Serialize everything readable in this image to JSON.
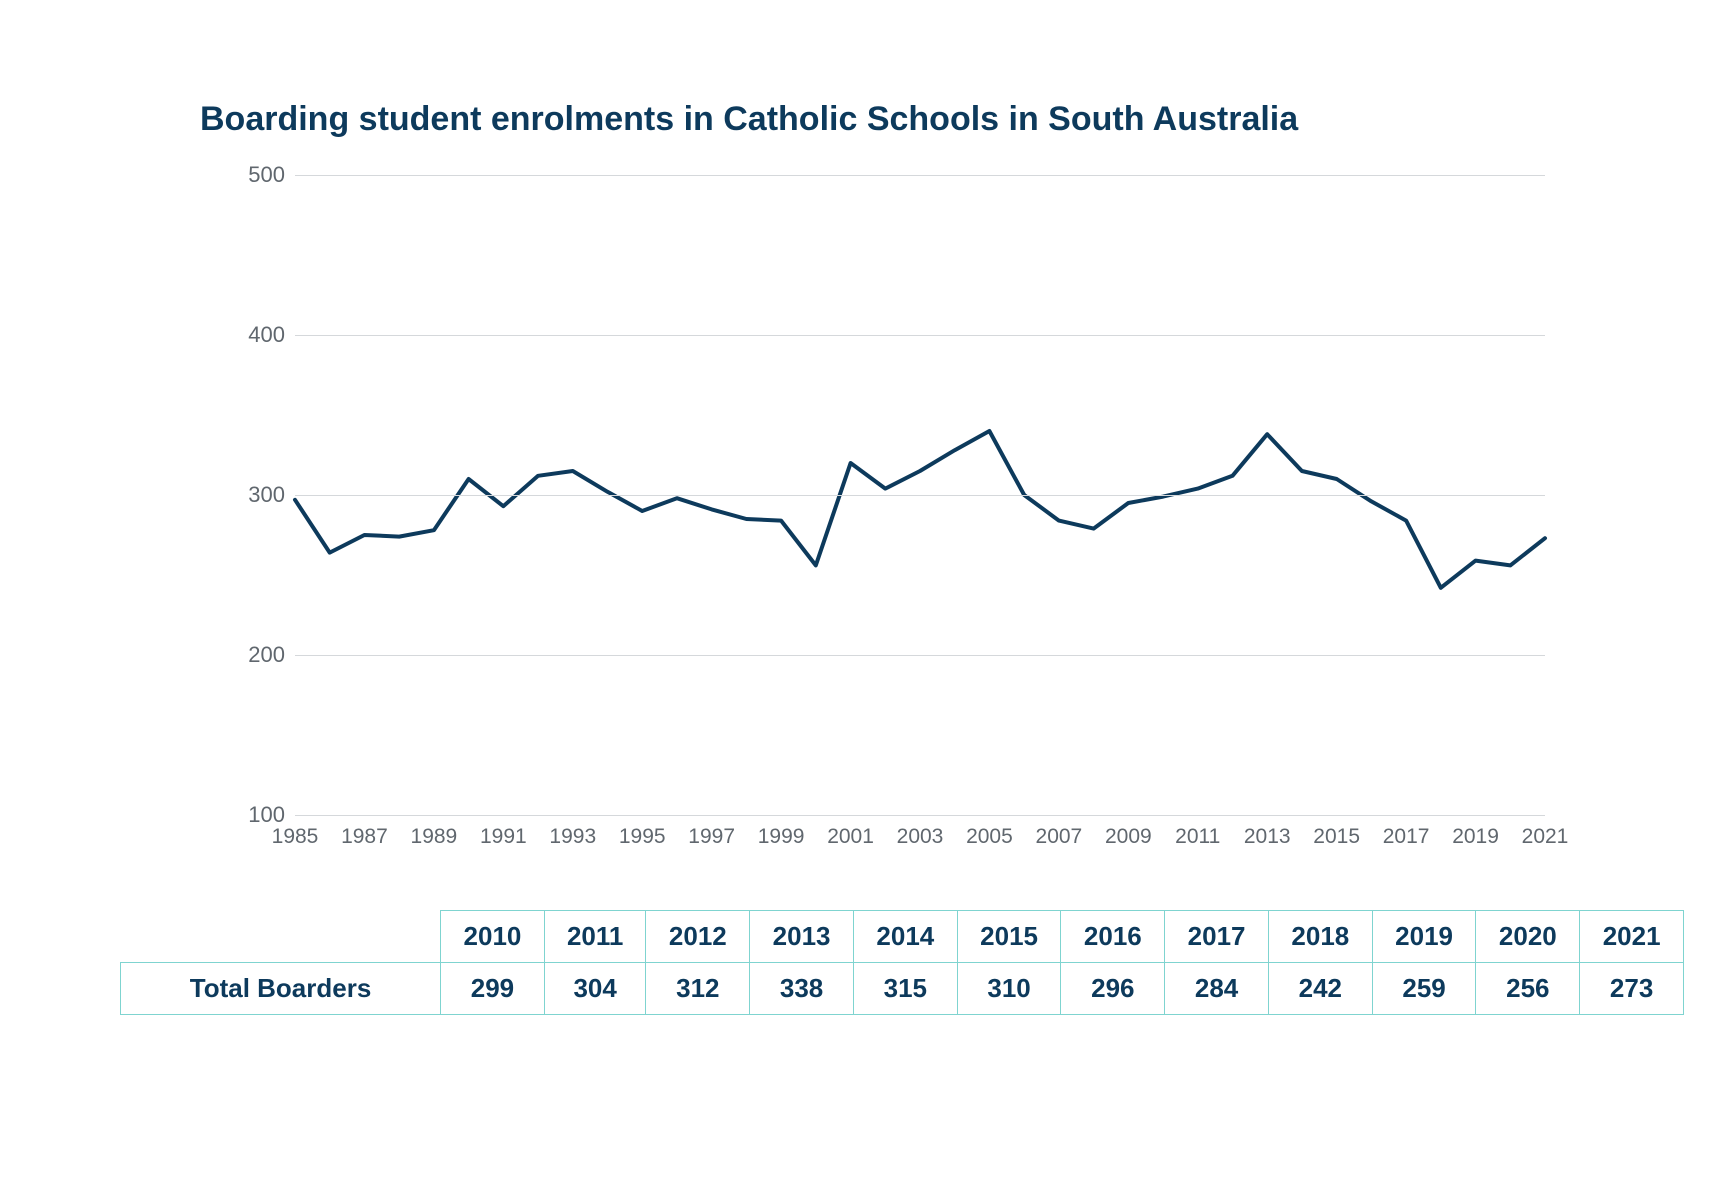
{
  "title": "Boarding student enrolments in Catholic Schools in South Australia",
  "chart": {
    "type": "line",
    "line_color": "#0d3a5c",
    "line_width": 4,
    "background_color": "#ffffff",
    "grid_color": "#d5d8db",
    "axis_label_color": "#60676e",
    "axis_label_fontsize": 22,
    "title_color": "#0d3a5c",
    "title_fontsize": 34,
    "ylim": [
      100,
      500
    ],
    "ytick_step": 100,
    "yticks": [
      100,
      200,
      300,
      400,
      500
    ],
    "x_start": 1985,
    "x_end": 2021,
    "xtick_step": 2,
    "xticks": [
      1985,
      1987,
      1989,
      1991,
      1993,
      1995,
      1997,
      1999,
      2001,
      2003,
      2005,
      2007,
      2009,
      2011,
      2013,
      2015,
      2017,
      2019,
      2021
    ],
    "series": {
      "years": [
        1985,
        1986,
        1987,
        1988,
        1989,
        1990,
        1991,
        1992,
        1993,
        1994,
        1995,
        1996,
        1997,
        1998,
        1999,
        2000,
        2001,
        2002,
        2003,
        2004,
        2005,
        2006,
        2007,
        2008,
        2009,
        2010,
        2011,
        2012,
        2013,
        2014,
        2015,
        2016,
        2017,
        2018,
        2019,
        2020,
        2021
      ],
      "values": [
        297,
        264,
        275,
        274,
        278,
        310,
        293,
        312,
        315,
        302,
        290,
        298,
        291,
        285,
        284,
        256,
        320,
        304,
        315,
        328,
        340,
        300,
        284,
        279,
        295,
        299,
        304,
        312,
        338,
        315,
        310,
        296,
        284,
        242,
        259,
        256,
        273
      ]
    }
  },
  "table": {
    "border_color": "#7fd4d0",
    "text_color": "#0d3a5c",
    "fontsize": 26,
    "row_label": "Total Boarders",
    "columns": [
      "2010",
      "2011",
      "2012",
      "2013",
      "2014",
      "2015",
      "2016",
      "2017",
      "2018",
      "2019",
      "2020",
      "2021"
    ],
    "values": [
      "299",
      "304",
      "312",
      "338",
      "315",
      "310",
      "296",
      "284",
      "242",
      "259",
      "256",
      "273"
    ]
  }
}
